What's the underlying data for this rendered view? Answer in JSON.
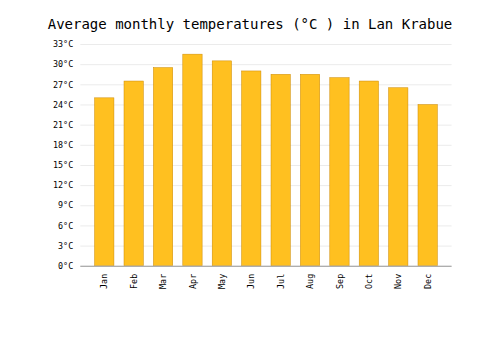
{
  "chart_data": {
    "type": "bar",
    "title": "Average monthly temperatures (°C ) in Lan Krabue",
    "categories": [
      "Jan",
      "Feb",
      "Mar",
      "Apr",
      "May",
      "Jun",
      "Jul",
      "Aug",
      "Sep",
      "Oct",
      "Nov",
      "Dec"
    ],
    "values": [
      25.0,
      27.5,
      29.5,
      31.5,
      30.5,
      29.0,
      28.5,
      28.5,
      28.0,
      27.5,
      26.5,
      24.0
    ],
    "color": "#FFC020",
    "ylim": [
      0,
      33
    ],
    "yticks": [
      {
        "value": 0,
        "label": "0°C"
      },
      {
        "value": 3,
        "label": "3°C"
      },
      {
        "value": 6,
        "label": "6°C"
      },
      {
        "value": 9,
        "label": "9°C"
      },
      {
        "value": 12,
        "label": "12°C"
      },
      {
        "value": 15,
        "label": "15°C"
      },
      {
        "value": 18,
        "label": "18°C"
      },
      {
        "value": 21,
        "label": "21°C"
      },
      {
        "value": 24,
        "label": "24°C"
      },
      {
        "value": 27,
        "label": "27°C"
      },
      {
        "value": 30,
        "label": "30°C"
      },
      {
        "value": 33,
        "label": "33°C"
      }
    ],
    "grid": true
  }
}
